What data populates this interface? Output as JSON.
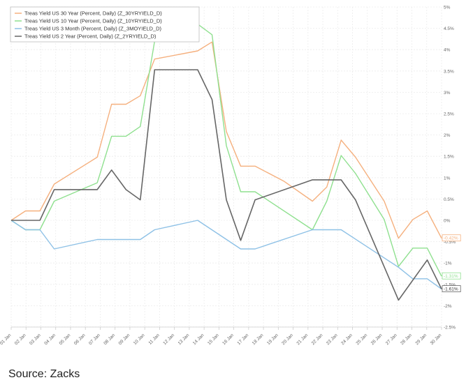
{
  "chart_data": {
    "type": "line",
    "x": [
      "01 Jan",
      "02 Jan",
      "03 Jan",
      "04 Jan",
      "05 Jan",
      "06 Jan",
      "07 Jan",
      "08 Jan",
      "09 Jan",
      "10 Jan",
      "11 Jan",
      "12 Jan",
      "13 Jan",
      "14 Jan",
      "15 Jan",
      "16 Jan",
      "17 Jan",
      "18 Jan",
      "19 Jan",
      "20 Jan",
      "21 Jan",
      "22 Jan",
      "23 Jan",
      "24 Jan",
      "25 Jan",
      "26 Jan",
      "27 Jan",
      "28 Jan",
      "29 Jan",
      "30 Jan"
    ],
    "ylim": [
      -2.5,
      5
    ],
    "yticks": [
      "5%",
      "4.5%",
      "4%",
      "3.5%",
      "3%",
      "2.5%",
      "2%",
      "1.5%",
      "1%",
      "0.5%",
      "0%",
      "-0.5%",
      "-1%",
      "-1.5%",
      "-2%",
      "-2.5%"
    ],
    "series": [
      {
        "name": "Treas Yield US 30 Year (Percent, Daily) (Z_30YRYIELD_D)",
        "color": "#f5b07e",
        "points": [
          [
            0,
            0
          ],
          [
            1,
            0.22
          ],
          [
            2,
            0.22
          ],
          [
            3,
            0.85
          ],
          [
            6,
            1.48
          ],
          [
            7,
            2.72
          ],
          [
            8,
            2.72
          ],
          [
            9,
            2.92
          ],
          [
            10,
            3.78
          ],
          [
            13,
            3.97
          ],
          [
            14,
            4.18
          ],
          [
            15,
            2.08
          ],
          [
            16,
            1.27
          ],
          [
            17,
            1.27
          ],
          [
            19,
            0.92
          ],
          [
            21,
            0.45
          ],
          [
            22,
            0.78
          ],
          [
            23,
            1.88
          ],
          [
            24,
            1.48
          ],
          [
            26,
            0.45
          ],
          [
            27,
            -0.42
          ],
          [
            28,
            0.02
          ],
          [
            29,
            0.22
          ],
          [
            30,
            -0.42
          ]
        ],
        "end_label": "-0.42%"
      },
      {
        "name": "Treas Yield US 10 Year (Percent, Daily) (Z_10YRYIELD_D)",
        "color": "#8fe08f",
        "points": [
          [
            0,
            0
          ],
          [
            1,
            -0.22
          ],
          [
            2,
            -0.22
          ],
          [
            3,
            0.45
          ],
          [
            6,
            0.88
          ],
          [
            7,
            1.97
          ],
          [
            8,
            1.97
          ],
          [
            9,
            2.2
          ],
          [
            10,
            4.2
          ],
          [
            13,
            4.6
          ],
          [
            14,
            4.35
          ],
          [
            15,
            1.75
          ],
          [
            16,
            0.67
          ],
          [
            17,
            0.67
          ],
          [
            21,
            -0.22
          ],
          [
            22,
            0.45
          ],
          [
            23,
            1.52
          ],
          [
            24,
            1.1
          ],
          [
            26,
            0.02
          ],
          [
            27,
            -1.08
          ],
          [
            28,
            -0.65
          ],
          [
            29,
            -0.65
          ],
          [
            30,
            -1.31
          ]
        ],
        "end_label": "-1.31%"
      },
      {
        "name": "Treas Yield US 3 Month (Percent, Daily) (Z_3MOYIELD_D)",
        "color": "#8ec1e6",
        "points": [
          [
            0,
            0
          ],
          [
            1,
            -0.22
          ],
          [
            2,
            -0.22
          ],
          [
            3,
            -0.67
          ],
          [
            6,
            -0.45
          ],
          [
            9,
            -0.45
          ],
          [
            10,
            -0.22
          ],
          [
            13,
            0
          ],
          [
            16,
            -0.67
          ],
          [
            17,
            -0.67
          ],
          [
            21,
            -0.22
          ],
          [
            23,
            -0.22
          ],
          [
            27,
            -1.1
          ],
          [
            28,
            -1.37
          ],
          [
            29,
            -1.37
          ],
          [
            30,
            -1.61
          ]
        ],
        "end_label": ""
      },
      {
        "name": "Treas Yield US 2 Year (Percent, Daily) (Z_2YRYIELD_D)",
        "color": "#666666",
        "points": [
          [
            0,
            0
          ],
          [
            2,
            0
          ],
          [
            3,
            0.72
          ],
          [
            6,
            0.72
          ],
          [
            7,
            1.18
          ],
          [
            8,
            0.72
          ],
          [
            9,
            0.48
          ],
          [
            10,
            3.53
          ],
          [
            13,
            3.53
          ],
          [
            14,
            2.83
          ],
          [
            15,
            0.48
          ],
          [
            16,
            -0.47
          ],
          [
            17,
            0.48
          ],
          [
            21,
            0.95
          ],
          [
            23,
            0.95
          ],
          [
            24,
            0.48
          ],
          [
            27,
            -1.87
          ],
          [
            29,
            -0.93
          ],
          [
            30,
            -1.61
          ]
        ],
        "end_label": "-1.61%"
      }
    ]
  },
  "source": "Source: Zacks"
}
